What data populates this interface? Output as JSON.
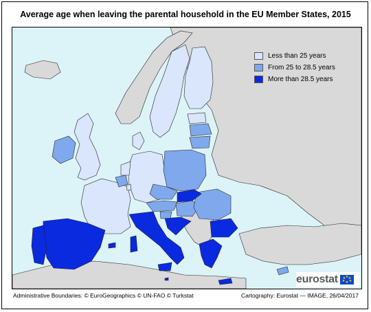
{
  "title": "Average age when leaving the parental household in the EU Member States, 2015",
  "legend": [
    {
      "label": "Less than 25 years",
      "color": "#d9e6fb"
    },
    {
      "label": "From 25 to 28.5 years",
      "color": "#7fa9ec"
    },
    {
      "label": "More than 28.5 years",
      "color": "#0a2ae0"
    }
  ],
  "colors": {
    "sea": "#dcf3f7",
    "non_eu": "#d9d9d9",
    "border": "#222222"
  },
  "map": {
    "region": "Europe",
    "countries": {
      "less_than_25": [
        "Finland",
        "Sweden",
        "Denmark",
        "Estonia",
        "Germany",
        "France",
        "Netherlands",
        "Luxembourg",
        "United Kingdom",
        "Belgium"
      ],
      "from_25_to_28_5": [
        "Latvia",
        "Lithuania",
        "Poland",
        "Czech Republic",
        "Austria",
        "Hungary",
        "Romania",
        "Ireland",
        "Slovenia",
        "Cyprus"
      ],
      "more_than_28_5": [
        "Spain",
        "Portugal",
        "Italy",
        "Malta",
        "Croatia",
        "Slovakia",
        "Greece",
        "Bulgaria"
      ]
    }
  },
  "footer": {
    "left": "Administrative Boundaries: © EuroGeographics © UN-FAO © Turkstat",
    "right": "Cartography: Eurostat — IMAGE, 26/04/2017"
  },
  "logo": {
    "text": "eurostat",
    "icon": "eu-flag-icon"
  }
}
